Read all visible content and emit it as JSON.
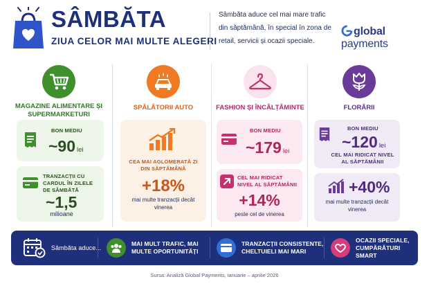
{
  "header": {
    "title": "SÂMBĂTA",
    "subtitle": "ZIUA CELOR MAI MULTE ALEGERI",
    "intro": "Sâmbăta aduce cel mai mare trafic din săptămână, în special în zona de retail, servicii și ocazii speciale.",
    "logo_bold": "global",
    "logo_rest": " payments"
  },
  "columns": [
    {
      "title": "MAGAZINE ALIMENTARE ȘI SUPERMARKETURI",
      "icon": "shopping-cart-icon",
      "color": "#3f8f2c",
      "card1": {
        "label": "BON MEDIU",
        "value": "~90",
        "unit": "lei",
        "icon": "receipt-icon"
      },
      "card2": {
        "label": "TRANZACȚII CU CARDUL ÎN ZILELE DE SÂMBĂTĂ",
        "value": "~1,5",
        "unit": "milioane",
        "icon": "card-icon"
      }
    },
    {
      "title": "SPĂLĂTORII AUTO",
      "icon": "car-wash-icon",
      "color": "#f07a23",
      "card1": {
        "label": "CEA MAI AGLOMERATĂ ZI DIN SĂPTĂMÂNĂ",
        "value": "+18%",
        "caption": "mai multe tranzacții decât vinerea",
        "icon": "bar-chart-up-icon"
      }
    },
    {
      "title": "FASHION ȘI ÎNCĂLȚĂMINTE",
      "icon": "hanger-icon",
      "color": "#c6306f",
      "card1": {
        "label": "BON MEDIU",
        "value": "~179",
        "unit": "lei",
        "icon": "card-icon"
      },
      "card2": {
        "label": "CEL MAI RIDICAT NIVEL AL SĂPTĂMÂNII",
        "value": "+14%",
        "caption": "peste cel de vinerea",
        "icon": "arrow-up-right-icon"
      }
    },
    {
      "title": "FLORĂRII",
      "icon": "tulip-icon",
      "color": "#6a3b98",
      "card1": {
        "label": "BON MEDIU",
        "value": "~120",
        "unit": "lei",
        "sub": "CEL MAI RIDICAT NIVEL AL SĂPTĂMÂNII",
        "icon": "receipt-icon"
      },
      "card2": {
        "value": "+40%",
        "caption": "mai multe tranzacții decât vinerea",
        "icon": "bar-chart-up-icon"
      }
    }
  ],
  "bottom_bar": {
    "lead": "Sâmbăta aduce...",
    "items": [
      {
        "text": "MAI MULT TRAFIC, MAI MULTE OPORTUNITĂȚI",
        "icon": "people-icon",
        "color": "#3f8f2c"
      },
      {
        "text": "TRANZACȚII CONSISTENTE, CHELTUIELI MAI MARI",
        "icon": "card-icon",
        "color": "#2f6fd6"
      },
      {
        "text": "OCAZII SPECIALE, CUMPĂRĂTURI SMART",
        "icon": "heart-icon",
        "color": "#d63b7a"
      }
    ]
  },
  "source": "Sursa: Analiză Global Payments, ianuarie – aprilie 2026"
}
